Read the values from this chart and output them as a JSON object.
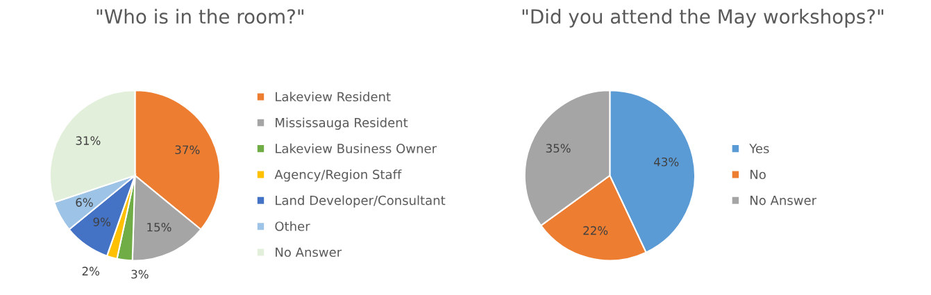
{
  "chart_data": [
    {
      "type": "pie",
      "title": "\"Who is in the room?\"",
      "categories": [
        "Lakeview Resident",
        "Mississauga Resident",
        "Lakeview Business Owner",
        "Agency/Region Staff",
        "Land Developer/Consultant",
        "Other",
        "No Answer"
      ],
      "values": [
        37,
        15,
        3,
        2,
        9,
        6,
        31
      ],
      "colors": [
        "#ed7d31",
        "#a5a5a5",
        "#70ad47",
        "#ffc000",
        "#4472c4",
        "#9dc3e6",
        "#e2efda"
      ],
      "value_labels": [
        "37%",
        "15%",
        "3%",
        "2%",
        "9%",
        "6%",
        "31%"
      ],
      "legend": "right"
    },
    {
      "type": "pie",
      "title": "\"Did you attend the May workshops?\"",
      "categories": [
        "Yes",
        "No",
        "No Answer"
      ],
      "values": [
        43,
        22,
        35
      ],
      "colors": [
        "#5b9bd5",
        "#ed7d31",
        "#a5a5a5"
      ],
      "value_labels": [
        "43%",
        "22%",
        "35%"
      ],
      "legend": "right"
    }
  ]
}
